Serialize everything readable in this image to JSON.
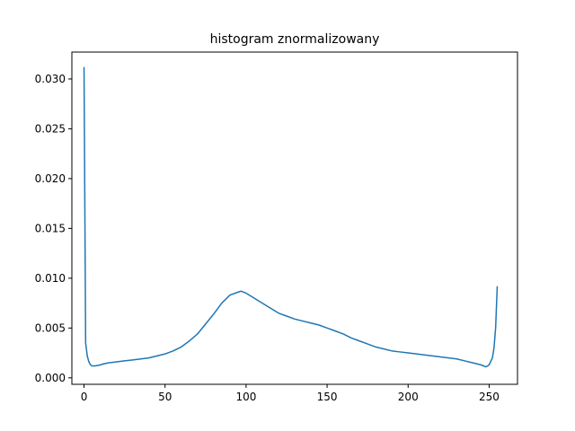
{
  "chart_data": {
    "type": "line",
    "title": "histogram znormalizowany",
    "xlabel": "",
    "ylabel": "",
    "xlim": [
      -7.5,
      267.5
    ],
    "ylim": [
      -0.00065,
      0.0327
    ],
    "grid": false,
    "legend": "none",
    "line_color": "#1f77b4",
    "x_ticks": [
      0,
      50,
      100,
      150,
      200,
      250
    ],
    "x_tick_labels": [
      "0",
      "50",
      "100",
      "150",
      "200",
      "250"
    ],
    "y_ticks": [
      0.0,
      0.005,
      0.01,
      0.015,
      0.02,
      0.025,
      0.03
    ],
    "y_tick_labels": [
      "0.000",
      "0.005",
      "0.010",
      "0.015",
      "0.020",
      "0.025",
      "0.030"
    ],
    "series": [
      {
        "name": "",
        "points": [
          [
            0,
            0.0312
          ],
          [
            1,
            0.0035
          ],
          [
            2,
            0.0022
          ],
          [
            3,
            0.0016
          ],
          [
            4,
            0.0013
          ],
          [
            5,
            0.0012
          ],
          [
            7,
            0.0012
          ],
          [
            10,
            0.0013
          ],
          [
            12,
            0.0014
          ],
          [
            15,
            0.0015
          ],
          [
            20,
            0.0016
          ],
          [
            25,
            0.0017
          ],
          [
            30,
            0.0018
          ],
          [
            35,
            0.0019
          ],
          [
            40,
            0.002
          ],
          [
            45,
            0.0022
          ],
          [
            50,
            0.0024
          ],
          [
            55,
            0.0027
          ],
          [
            60,
            0.0031
          ],
          [
            65,
            0.0037
          ],
          [
            70,
            0.0044
          ],
          [
            75,
            0.0054
          ],
          [
            80,
            0.0064
          ],
          [
            85,
            0.0075
          ],
          [
            90,
            0.0083
          ],
          [
            95,
            0.0086
          ],
          [
            97,
            0.0087
          ],
          [
            100,
            0.0085
          ],
          [
            105,
            0.008
          ],
          [
            110,
            0.0075
          ],
          [
            115,
            0.007
          ],
          [
            120,
            0.0065
          ],
          [
            125,
            0.0062
          ],
          [
            130,
            0.0059
          ],
          [
            135,
            0.0057
          ],
          [
            140,
            0.0055
          ],
          [
            145,
            0.0053
          ],
          [
            150,
            0.005
          ],
          [
            155,
            0.0047
          ],
          [
            160,
            0.0044
          ],
          [
            165,
            0.004
          ],
          [
            170,
            0.0037
          ],
          [
            175,
            0.0034
          ],
          [
            180,
            0.0031
          ],
          [
            185,
            0.0029
          ],
          [
            190,
            0.0027
          ],
          [
            195,
            0.0026
          ],
          [
            200,
            0.0025
          ],
          [
            205,
            0.0024
          ],
          [
            210,
            0.0023
          ],
          [
            215,
            0.0022
          ],
          [
            220,
            0.0021
          ],
          [
            225,
            0.002
          ],
          [
            230,
            0.0019
          ],
          [
            235,
            0.0017
          ],
          [
            240,
            0.0015
          ],
          [
            245,
            0.0013
          ],
          [
            248,
            0.0011
          ],
          [
            250,
            0.0013
          ],
          [
            252,
            0.002
          ],
          [
            253,
            0.003
          ],
          [
            254,
            0.005
          ],
          [
            255,
            0.0092
          ]
        ]
      }
    ]
  }
}
